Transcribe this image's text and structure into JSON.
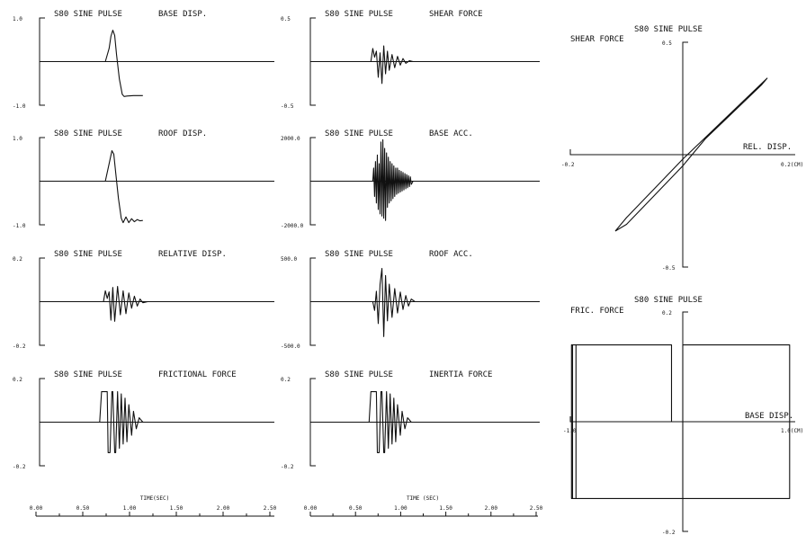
{
  "colors": {
    "ink": "#111111",
    "background": "#ffffff"
  },
  "x_axis": {
    "label": "TIME(SEC)",
    "label_right": "TIME (SEC)",
    "ticks": [
      "0.00",
      "0.50",
      "1.00",
      "1.50",
      "2.00",
      "2.50"
    ],
    "ticks_right": [
      "0.00",
      "0.50",
      "1.00",
      "1.50",
      "2.00",
      "2.50"
    ],
    "range": [
      0,
      2.5
    ]
  },
  "chart_data": [
    {
      "type": "line",
      "title": "S80 SINE PULSE",
      "subtitle": "BASE DISP.",
      "ymax_label": "1.0",
      "ymin_label": "-1.0",
      "ylim": [
        -1.0,
        1.0
      ],
      "x_range": [
        0,
        2.5
      ],
      "x": [
        0,
        0.7,
        0.74,
        0.76,
        0.78,
        0.8,
        0.82,
        0.85,
        0.88,
        0.9,
        0.93,
        1.0,
        1.1
      ],
      "y": [
        0,
        0,
        0.3,
        0.58,
        0.72,
        0.6,
        0.15,
        -0.4,
        -0.75,
        -0.8,
        -0.79,
        -0.78,
        -0.78
      ]
    },
    {
      "type": "line",
      "title": "S80 SINE PULSE",
      "subtitle": "ROOF DISP.",
      "ymax_label": "1.0",
      "ymin_label": "-1.0",
      "ylim": [
        -1.0,
        1.0
      ],
      "x_range": [
        0,
        2.5
      ],
      "x": [
        0,
        0.7,
        0.74,
        0.77,
        0.79,
        0.81,
        0.84,
        0.87,
        0.89,
        0.92,
        0.95,
        0.98,
        1.01,
        1.04,
        1.07,
        1.1
      ],
      "y": [
        0,
        0,
        0.4,
        0.7,
        0.62,
        0.2,
        -0.4,
        -0.85,
        -0.95,
        -0.82,
        -0.95,
        -0.86,
        -0.93,
        -0.88,
        -0.91,
        -0.9
      ]
    },
    {
      "type": "line",
      "title": "S80 SINE PULSE",
      "subtitle": "RELATIVE DISP.",
      "ymax_label": "0.2",
      "ymin_label": "-0.2",
      "ylim": [
        -0.2,
        0.2
      ],
      "x_range": [
        0,
        2.5
      ],
      "x": [
        0,
        0.68,
        0.7,
        0.72,
        0.74,
        0.76,
        0.78,
        0.8,
        0.83,
        0.86,
        0.89,
        0.92,
        0.95,
        0.98,
        1.01,
        1.04,
        1.07,
        1.1,
        1.15
      ],
      "y": [
        0,
        0,
        0.05,
        0.015,
        0.045,
        -0.085,
        0.065,
        -0.09,
        0.07,
        -0.06,
        0.05,
        -0.055,
        0.04,
        -0.03,
        0.025,
        -0.02,
        0.012,
        -0.005,
        0
      ]
    },
    {
      "type": "line",
      "title": "S80 SINE PULSE",
      "subtitle": "FRICTIONAL FORCE",
      "ymax_label": "0.2",
      "ymin_label": "-0.2",
      "ylim": [
        -0.2,
        0.2
      ],
      "x_range": [
        0,
        2.5
      ],
      "x": [
        0,
        0.64,
        0.66,
        0.72,
        0.73,
        0.75,
        0.77,
        0.78,
        0.8,
        0.81,
        0.83,
        0.85,
        0.87,
        0.89,
        0.91,
        0.93,
        0.95,
        0.98,
        1.0,
        1.03,
        1.06,
        1.1,
        1.15
      ],
      "y": [
        0,
        0,
        0.14,
        0.14,
        -0.14,
        -0.14,
        0.14,
        0.14,
        -0.14,
        -0.14,
        0.14,
        -0.12,
        0.13,
        -0.1,
        0.11,
        -0.09,
        0.08,
        -0.06,
        0.05,
        -0.03,
        0.02,
        0,
        0
      ]
    },
    {
      "type": "line",
      "title": "S80 SINE PULSE",
      "subtitle": "SHEAR FORCE",
      "ymax_label": "0.5",
      "ymin_label": "-0.5",
      "ylim": [
        -0.5,
        0.5
      ],
      "x_range": [
        0,
        2.5
      ],
      "x": [
        0,
        0.66,
        0.68,
        0.7,
        0.72,
        0.74,
        0.76,
        0.78,
        0.8,
        0.82,
        0.84,
        0.86,
        0.89,
        0.92,
        0.95,
        0.98,
        1.01,
        1.04,
        1.08,
        1.12
      ],
      "y": [
        0,
        0,
        0.15,
        0.05,
        0.12,
        -0.18,
        0.1,
        -0.25,
        0.18,
        -0.14,
        0.12,
        -0.1,
        0.08,
        -0.07,
        0.06,
        -0.04,
        0.035,
        -0.02,
        0.01,
        0
      ]
    },
    {
      "type": "line",
      "title": "S80 SINE PULSE",
      "subtitle": "BASE ACC.",
      "ymax_label": "2000.0",
      "ymin_label": "-2000.0",
      "ylim": [
        -2000,
        2000
      ],
      "x_range": [
        0,
        2.5
      ],
      "x": [
        0,
        0.68,
        0.69,
        0.7,
        0.71,
        0.72,
        0.73,
        0.74,
        0.75,
        0.76,
        0.77,
        0.78,
        0.79,
        0.8,
        0.81,
        0.82,
        0.83,
        0.84,
        0.85,
        0.86,
        0.87,
        0.88,
        0.89,
        0.9,
        0.91,
        0.92,
        0.93,
        0.94,
        0.95,
        0.96,
        0.97,
        0.98,
        0.99,
        1.0,
        1.01,
        1.02,
        1.03,
        1.04,
        1.05,
        1.06,
        1.07,
        1.08,
        1.09,
        1.1,
        1.12,
        2.5
      ],
      "y": [
        0,
        0,
        600,
        -700,
        900,
        -1000,
        1200,
        -1300,
        800,
        -1500,
        1800,
        -1600,
        1900,
        -1700,
        1500,
        -1800,
        1300,
        -1200,
        1100,
        -1000,
        900,
        -900,
        800,
        -800,
        700,
        -700,
        600,
        -600,
        600,
        -550,
        500,
        -500,
        450,
        -450,
        400,
        -400,
        350,
        -350,
        300,
        -300,
        250,
        -250,
        200,
        -150,
        0,
        0
      ]
    },
    {
      "type": "line",
      "title": "S80 SINE PULSE",
      "subtitle": "ROOF ACC.",
      "ymax_label": "500.0",
      "ymin_label": "-500.0",
      "ylim": [
        -500,
        500
      ],
      "x_range": [
        0,
        2.5
      ],
      "x": [
        0,
        0.68,
        0.7,
        0.72,
        0.74,
        0.76,
        0.78,
        0.8,
        0.82,
        0.84,
        0.86,
        0.89,
        0.92,
        0.95,
        0.98,
        1.01,
        1.04,
        1.07,
        1.1,
        1.14,
        2.5
      ],
      "y": [
        0,
        0,
        -100,
        120,
        -250,
        200,
        380,
        -400,
        300,
        -220,
        200,
        -180,
        150,
        -130,
        110,
        -90,
        70,
        -50,
        30,
        0,
        0
      ]
    },
    {
      "type": "line",
      "title": "S80 SINE PULSE",
      "subtitle": "INERTIA FORCE",
      "ymax_label": "0.2",
      "ymin_label": "-0.2",
      "ylim": [
        -0.2,
        0.2
      ],
      "x_range": [
        0,
        2.5
      ],
      "x": [
        0,
        0.64,
        0.66,
        0.72,
        0.73,
        0.75,
        0.77,
        0.78,
        0.8,
        0.81,
        0.83,
        0.85,
        0.87,
        0.89,
        0.91,
        0.93,
        0.95,
        0.98,
        1.0,
        1.03,
        1.06,
        1.1,
        1.15
      ],
      "y": [
        0,
        0,
        0.14,
        0.14,
        -0.14,
        -0.14,
        0.14,
        0.14,
        -0.14,
        -0.14,
        0.14,
        -0.12,
        0.13,
        -0.1,
        0.11,
        -0.09,
        0.08,
        -0.06,
        0.05,
        -0.03,
        0.02,
        0,
        0
      ]
    },
    {
      "type": "line",
      "title": "S80 SINE PULSE",
      "ylabel": "SHEAR FORCE",
      "xlabel": "REL. DISP.",
      "xmin_label": "-0.2",
      "xmax_label": "0.2(CM)",
      "ymax_label": "0.5",
      "ymin_label": "-0.5",
      "xlim": [
        -0.2,
        0.2
      ],
      "ylim": [
        -0.5,
        0.5
      ],
      "x": [
        -0.12,
        -0.1,
        -0.05,
        0.0,
        0.05,
        0.1,
        0.15,
        0.14,
        0.09,
        0.04,
        0.0,
        -0.05,
        -0.1,
        -0.12
      ],
      "y": [
        -0.34,
        -0.28,
        -0.15,
        -0.02,
        0.1,
        0.22,
        0.34,
        0.31,
        0.19,
        0.07,
        -0.05,
        -0.18,
        -0.31,
        -0.34
      ]
    },
    {
      "type": "line",
      "title": "S80 SINE PULSE",
      "ylabel": "FRIC. FORCE",
      "xlabel": "BASE DISP.",
      "xmin_label": "-1.0",
      "xmax_label": "1.0(CM)",
      "ymax_label": "0.2",
      "ymin_label": "-0.2",
      "xlim": [
        -1.0,
        1.0
      ],
      "ylim": [
        -0.2,
        0.2
      ],
      "x": [
        -0.1,
        -0.1,
        -0.98,
        -0.98,
        -0.95,
        -0.95,
        -0.99,
        -0.99,
        -0.93,
        -0.93,
        0.0,
        0.0,
        0.95,
        0.95,
        -0.93
      ],
      "y": [
        0,
        0.14,
        0.14,
        -0.14,
        -0.14,
        0.14,
        0.14,
        -0.14,
        -0.14,
        -0.14,
        -0.14,
        0.14,
        0.14,
        -0.14,
        -0.14
      ]
    }
  ]
}
